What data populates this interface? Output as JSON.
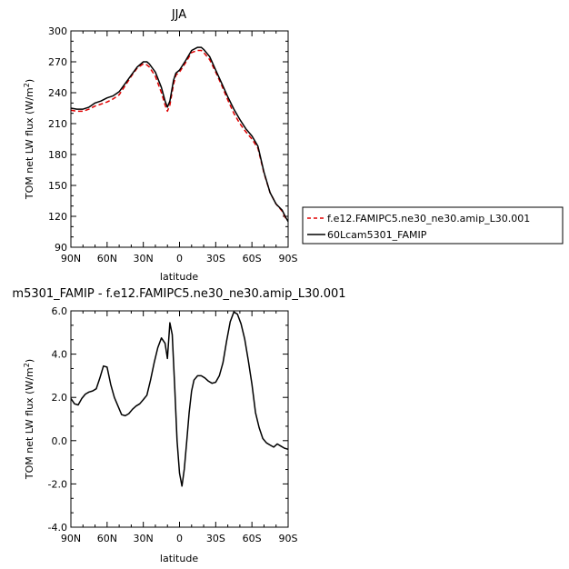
{
  "chart_data": [
    {
      "type": "line",
      "title": "JJA",
      "xlabel": "latitude",
      "ylabel_main": "TOM net LW flux (W/m",
      "ylabel_sup": "2",
      "ylabel_end": ")",
      "xlim": [
        90,
        -90
      ],
      "ylim": [
        90,
        300
      ],
      "xticks": [
        {
          "value": 90,
          "label": "90N"
        },
        {
          "value": 60,
          "label": "60N"
        },
        {
          "value": 30,
          "label": "30N"
        },
        {
          "value": 0,
          "label": "0"
        },
        {
          "value": -30,
          "label": "30S"
        },
        {
          "value": -60,
          "label": "60S"
        },
        {
          "value": -90,
          "label": "90S"
        }
      ],
      "yticks": [
        {
          "value": 90,
          "label": "90"
        },
        {
          "value": 120,
          "label": "120"
        },
        {
          "value": 150,
          "label": "150"
        },
        {
          "value": 180,
          "label": "180"
        },
        {
          "value": 210,
          "label": "210"
        },
        {
          "value": 240,
          "label": "240"
        },
        {
          "value": 270,
          "label": "270"
        },
        {
          "value": 300,
          "label": "300"
        }
      ],
      "legend_position": "right",
      "series": [
        {
          "name": "f.e12.FAMIPC5.ne30_ne30.amip_L30.001",
          "color": "#e00000",
          "dash": true,
          "x": [
            90,
            85,
            80,
            75,
            70,
            65,
            60,
            55,
            50,
            45,
            40,
            35,
            30,
            27,
            25,
            20,
            15,
            12,
            10,
            8,
            5,
            3,
            0,
            -5,
            -10,
            -15,
            -18,
            -20,
            -25,
            -30,
            -35,
            -40,
            -45,
            -50,
            -55,
            -60,
            -65,
            -70,
            -75,
            -80,
            -85,
            -88,
            -90
          ],
          "y": [
            223,
            222,
            222,
            224,
            227,
            229,
            231,
            234,
            238,
            247,
            256,
            264,
            268,
            267,
            265,
            256,
            240,
            228,
            222,
            228,
            248,
            257,
            260,
            269,
            279,
            281,
            281,
            279,
            272,
            260,
            247,
            233,
            220,
            210,
            202,
            195,
            186,
            162,
            143,
            132,
            125,
            118,
            116
          ]
        },
        {
          "name": "60Lcam5301_FAMIP",
          "color": "#000000",
          "dash": false,
          "x": [
            90,
            85,
            80,
            75,
            70,
            65,
            60,
            55,
            50,
            45,
            40,
            35,
            30,
            27,
            25,
            20,
            15,
            12,
            10,
            8,
            5,
            3,
            0,
            -5,
            -10,
            -15,
            -18,
            -20,
            -25,
            -30,
            -35,
            -40,
            -45,
            -50,
            -55,
            -60,
            -65,
            -70,
            -75,
            -80,
            -85,
            -88,
            -90
          ],
          "y": [
            225,
            224,
            224,
            226,
            230,
            232,
            235,
            237,
            241,
            249,
            257,
            265,
            270,
            270,
            268,
            260,
            245,
            232,
            226,
            232,
            252,
            259,
            262,
            271,
            281,
            284,
            284,
            282,
            275,
            262,
            249,
            236,
            224,
            214,
            205,
            198,
            188,
            163,
            143,
            132,
            126,
            119,
            115
          ]
        }
      ]
    },
    {
      "type": "line",
      "title": "m5301_FAMIP  -  f.e12.FAMIPC5.ne30_ne30.amip_L30.001",
      "xlabel": "latitude",
      "ylabel_main": "TOM net LW flux (W/m",
      "ylabel_sup": "2",
      "ylabel_end": ")",
      "xlim": [
        90,
        -90
      ],
      "ylim": [
        -4,
        6
      ],
      "xticks": [
        {
          "value": 90,
          "label": "90N"
        },
        {
          "value": 60,
          "label": "60N"
        },
        {
          "value": 30,
          "label": "30N"
        },
        {
          "value": 0,
          "label": "0"
        },
        {
          "value": -30,
          "label": "30S"
        },
        {
          "value": -60,
          "label": "60S"
        },
        {
          "value": -90,
          "label": "90S"
        }
      ],
      "yticks": [
        {
          "value": -4,
          "label": "-4.0"
        },
        {
          "value": -2,
          "label": "-2.0"
        },
        {
          "value": 0,
          "label": "0.0"
        },
        {
          "value": 2,
          "label": "2.0"
        },
        {
          "value": 4,
          "label": "4.0"
        },
        {
          "value": 6,
          "label": "6.0"
        }
      ],
      "series": [
        {
          "name": "",
          "color": "#000000",
          "dash": false,
          "x": [
            90,
            87,
            84,
            81,
            78,
            75,
            72,
            69,
            66,
            63,
            60,
            57,
            54,
            51,
            48,
            45,
            42,
            39,
            36,
            33,
            30,
            27,
            24,
            21,
            18,
            15,
            12,
            10,
            8,
            6,
            4,
            2,
            0,
            -2,
            -4,
            -6,
            -8,
            -10,
            -12,
            -15,
            -18,
            -21,
            -24,
            -27,
            -30,
            -33,
            -36,
            -39,
            -42,
            -45,
            -48,
            -51,
            -54,
            -57,
            -60,
            -63,
            -66,
            -69,
            -72,
            -75,
            -78,
            -81,
            -84,
            -87,
            -90
          ],
          "y": [
            1.95,
            1.7,
            1.65,
            1.95,
            2.15,
            2.25,
            2.3,
            2.4,
            2.9,
            3.45,
            3.4,
            2.6,
            2.0,
            1.6,
            1.2,
            1.15,
            1.25,
            1.45,
            1.6,
            1.7,
            1.9,
            2.1,
            2.8,
            3.6,
            4.3,
            4.75,
            4.5,
            3.8,
            5.45,
            4.9,
            2.5,
            0.0,
            -1.5,
            -2.1,
            -1.3,
            0.0,
            1.3,
            2.3,
            2.8,
            3.0,
            3.0,
            2.9,
            2.75,
            2.65,
            2.7,
            3.0,
            3.6,
            4.6,
            5.5,
            5.95,
            5.85,
            5.4,
            4.7,
            3.7,
            2.6,
            1.3,
            0.6,
            0.1,
            -0.1,
            -0.2,
            -0.3,
            -0.15,
            -0.25,
            -0.35,
            -0.4
          ]
        }
      ]
    }
  ]
}
